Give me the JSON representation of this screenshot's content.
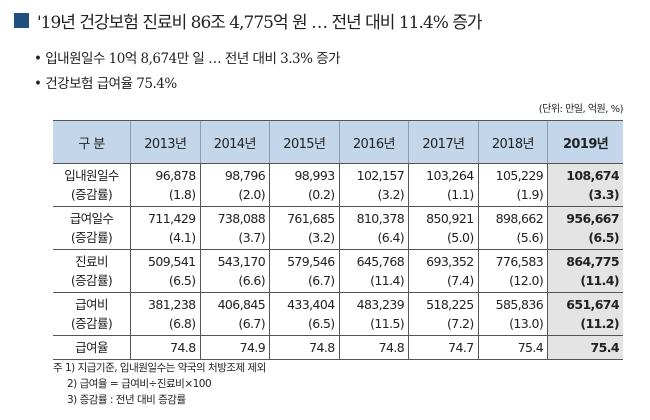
{
  "title": "'19년 건강보험 진료비 86조 4,775억 원 … 전년 대비 11.4% 증가",
  "bullets": [
    "입내원일수 10억 8,674만 일 … 전년 대비 3.3% 증가",
    "건강보험 급여율 75.4%"
  ],
  "unit": "(단위: 만일, 억원, %)",
  "table": {
    "headers": [
      "구 분",
      "2013년",
      "2014년",
      "2015년",
      "2016년",
      "2017년",
      "2018년",
      "2019년"
    ],
    "rows": [
      {
        "label": "입내원일수",
        "sub": "(증감률)",
        "values": [
          "96,878",
          "98,796",
          "98,993",
          "102,157",
          "103,264",
          "105,229",
          "108,674"
        ],
        "rates": [
          "(1.8)",
          "(2.0)",
          "(0.2)",
          "(3.2)",
          "(1.1)",
          "(1.9)",
          "(3.3)"
        ]
      },
      {
        "label": "급여일수",
        "sub": "(증감률)",
        "values": [
          "711,429",
          "738,088",
          "761,685",
          "810,378",
          "850,921",
          "898,662",
          "956,667"
        ],
        "rates": [
          "(4.1)",
          "(3.7)",
          "(3.2)",
          "(6.4)",
          "(5.0)",
          "(5.6)",
          "(6.5)"
        ]
      },
      {
        "label": "진료비",
        "sub": "(증감률)",
        "values": [
          "509,541",
          "543,170",
          "579,546",
          "645,768",
          "693,352",
          "776,583",
          "864,775"
        ],
        "rates": [
          "(6.5)",
          "(6.6)",
          "(6.7)",
          "(11.4)",
          "(7.4)",
          "(12.0)",
          "(11.4)"
        ]
      },
      {
        "label": "급여비",
        "sub": "(증감률)",
        "values": [
          "381,238",
          "406,845",
          "433,404",
          "483,239",
          "518,225",
          "585,836",
          "651,674"
        ],
        "rates": [
          "(6.8)",
          "(6.7)",
          "(6.5)",
          "(11.5)",
          "(7.2)",
          "(13.0)",
          "(11.2)"
        ]
      }
    ],
    "last_row": {
      "label": "급여율",
      "values": [
        "74.8",
        "74.9",
        "74.8",
        "74.8",
        "74.7",
        "75.4",
        "75.4"
      ]
    }
  },
  "notes": [
    "주 1) 지급기준, 입내원일수는 약국의 처방조제 제외",
    "2) 급여율 = 급여비÷진료비×100",
    "3) 증감률 : 전년 대비 증감률"
  ],
  "colors": {
    "accent": "#1f4f7e",
    "header_bg": "#c3d6ea",
    "highlight_bg": "#e4e4e4"
  }
}
